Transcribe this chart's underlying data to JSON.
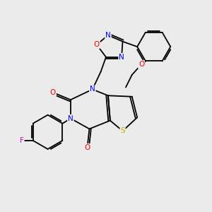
{
  "background_color": "#ebebeb",
  "bond_color": "#000000",
  "bond_width": 1.3,
  "atoms": {
    "N": "#0000ff",
    "O": "#ff0000",
    "S": "#ccaa00",
    "F": "#dd00dd"
  },
  "figsize": [
    3.0,
    3.0
  ],
  "dpi": 100
}
